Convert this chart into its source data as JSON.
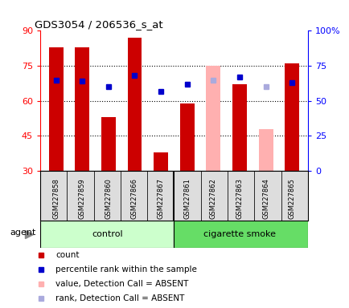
{
  "title": "GDS3054 / 206536_s_at",
  "samples": [
    "GSM227858",
    "GSM227859",
    "GSM227860",
    "GSM227866",
    "GSM227867",
    "GSM227861",
    "GSM227862",
    "GSM227863",
    "GSM227864",
    "GSM227865"
  ],
  "groups": [
    "control",
    "control",
    "control",
    "control",
    "control",
    "cigarette smoke",
    "cigarette smoke",
    "cigarette smoke",
    "cigarette smoke",
    "cigarette smoke"
  ],
  "count_values": [
    83,
    83,
    53,
    87,
    38,
    59,
    null,
    67,
    null,
    76
  ],
  "count_absent": [
    null,
    null,
    null,
    null,
    null,
    null,
    75,
    null,
    48,
    null
  ],
  "rank_values": [
    65,
    64,
    60,
    68,
    57,
    62,
    null,
    67,
    null,
    63
  ],
  "rank_absent": [
    null,
    null,
    null,
    null,
    null,
    null,
    65,
    null,
    60,
    null
  ],
  "ylim_left": [
    30,
    90
  ],
  "ylim_right": [
    0,
    100
  ],
  "yticks_left": [
    30,
    45,
    60,
    75,
    90
  ],
  "yticks_right": [
    0,
    25,
    50,
    75,
    100
  ],
  "ytick_labels_left": [
    "30",
    "45",
    "60",
    "75",
    "90"
  ],
  "ytick_labels_right": [
    "0",
    "25",
    "50",
    "75",
    "100%"
  ],
  "count_color": "#CC0000",
  "count_absent_color": "#FFB0B0",
  "rank_color": "#0000CC",
  "rank_absent_color": "#AAAADD",
  "control_bg_light": "#CCFFCC",
  "control_bg_dark": "#66DD66",
  "agent_label": "agent",
  "control_label": "control",
  "smoke_label": "cigarette smoke",
  "bg_color": "#FFFFFF"
}
